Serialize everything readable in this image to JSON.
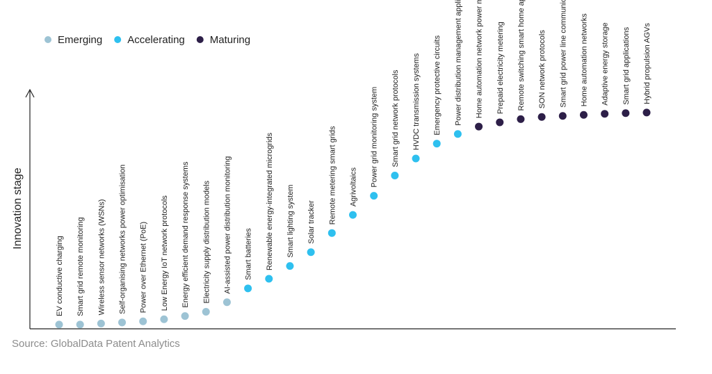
{
  "chart_data": {
    "type": "scatter",
    "ylabel": "Innovation stage",
    "source": "Source: GlobalData Patent Analytics",
    "legend": [
      {
        "name": "Emerging",
        "color": "#9dc3d4"
      },
      {
        "name": "Accelerating",
        "color": "#2ec0ef"
      },
      {
        "name": "Maturing",
        "color": "#2d1f48"
      }
    ],
    "points": [
      {
        "label": "EV conductive charging",
        "stage": "Emerging",
        "y": 2
      },
      {
        "label": "Smart grid remote monitoring",
        "stage": "Emerging",
        "y": 2
      },
      {
        "label": "Wireless sensor networks (WSNs)",
        "stage": "Emerging",
        "y": 2.5
      },
      {
        "label": "Self-organising networks power optimisation",
        "stage": "Emerging",
        "y": 3
      },
      {
        "label": "Power over Ethernet (PoE)",
        "stage": "Emerging",
        "y": 3.5
      },
      {
        "label": "Low Energy IoT network protocols",
        "stage": "Emerging",
        "y": 4.5
      },
      {
        "label": "Energy efficient demand response systems",
        "stage": "Emerging",
        "y": 6
      },
      {
        "label": "Electricity supply distribution models",
        "stage": "Emerging",
        "y": 8
      },
      {
        "label": "AI-assisted power distribution monitoring",
        "stage": "Emerging",
        "y": 12.5
      },
      {
        "label": "Smart batteries",
        "stage": "Accelerating",
        "y": 19
      },
      {
        "label": "Renewable energy-integrated microgrids",
        "stage": "Accelerating",
        "y": 23.5
      },
      {
        "label": "Smart lighting system",
        "stage": "Accelerating",
        "y": 29.5
      },
      {
        "label": "Solar tracker",
        "stage": "Accelerating",
        "y": 36
      },
      {
        "label": "Remote metering smart grids",
        "stage": "Accelerating",
        "y": 45
      },
      {
        "label": "Agrivoltaics",
        "stage": "Accelerating",
        "y": 53.5
      },
      {
        "label": "Power grid monitoring system",
        "stage": "Accelerating",
        "y": 62.5
      },
      {
        "label": "Smart grid network protocols",
        "stage": "Accelerating",
        "y": 72
      },
      {
        "label": "HVDC transmission systems",
        "stage": "Accelerating",
        "y": 80
      },
      {
        "label": "Emergency protective circuits",
        "stage": "Accelerating",
        "y": 87
      },
      {
        "label": "Power distribution management applications",
        "stage": "Accelerating",
        "y": 91.5
      },
      {
        "label": "Home automation network power management",
        "stage": "Maturing",
        "y": 95
      },
      {
        "label": "Prepaid electricity metering",
        "stage": "Maturing",
        "y": 97
      },
      {
        "label": "Remote switching smart home applications",
        "stage": "Maturing",
        "y": 98.5
      },
      {
        "label": "SON network protocols",
        "stage": "Maturing",
        "y": 99.5
      },
      {
        "label": "Smart grid power line communication",
        "stage": "Maturing",
        "y": 100
      },
      {
        "label": "Home automation networks",
        "stage": "Maturing",
        "y": 100.5
      },
      {
        "label": "Adaptive energy storage",
        "stage": "Maturing",
        "y": 101
      },
      {
        "label": "Smart grid applications",
        "stage": "Maturing",
        "y": 101.3
      },
      {
        "label": "Hybrid propulsion AGVs",
        "stage": "Maturing",
        "y": 101.6
      }
    ],
    "ylim": [
      0,
      112
    ],
    "grid": false,
    "legend_placement": "top-left"
  }
}
